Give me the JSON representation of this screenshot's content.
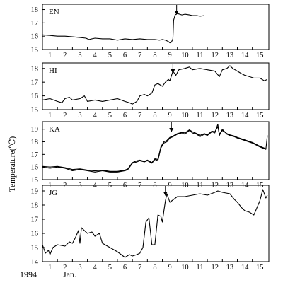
{
  "chart_data": {
    "type": "line",
    "ylabel": "Temperature(℃)",
    "footer": {
      "year": "1994",
      "month": "Jan."
    },
    "x_ticks": [
      1,
      2,
      3,
      4,
      5,
      6,
      7,
      8,
      9,
      10,
      11,
      12,
      13,
      14,
      15
    ],
    "xlim": [
      0.5,
      15.6
    ],
    "panels": [
      {
        "label": "EN",
        "ylim": [
          15,
          18.4
        ],
        "yticks": [
          15,
          16,
          17,
          18
        ],
        "arrow_x": 9.45,
        "series": [
          {
            "x": [
              0.5,
              1.0,
              1.5,
              2.0,
              2.5,
              3.0,
              3.4,
              3.6,
              4.0,
              4.5,
              5.0,
              5.5,
              6.0,
              6.5,
              7.0,
              7.5,
              8.0,
              8.3,
              8.5,
              8.7,
              8.9,
              9.0,
              9.1,
              9.2,
              9.25,
              9.35,
              9.5,
              9.8,
              10.0,
              10.3,
              10.5,
              10.8,
              11.0,
              11.3
            ],
            "values": [
              16.1,
              16.05,
              16.0,
              16.0,
              15.95,
              15.9,
              15.85,
              15.75,
              15.85,
              15.8,
              15.8,
              15.7,
              15.8,
              15.75,
              15.8,
              15.75,
              15.75,
              15.7,
              15.75,
              15.7,
              15.6,
              15.5,
              15.55,
              15.8,
              17.2,
              17.6,
              17.7,
              17.6,
              17.65,
              17.6,
              17.55,
              17.55,
              17.5,
              17.55
            ]
          }
        ]
      },
      {
        "label": "HI",
        "ylim": [
          15,
          18.4
        ],
        "yticks": [
          15,
          16,
          17,
          18
        ],
        "arrow_x": 9.2,
        "series": [
          {
            "x": [
              0.5,
              1.0,
              1.5,
              1.8,
              2.0,
              2.3,
              2.5,
              3.0,
              3.3,
              3.5,
              4.0,
              4.5,
              5.0,
              5.5,
              6.0,
              6.3,
              6.5,
              6.8,
              7.0,
              7.3,
              7.5,
              7.8,
              8.0,
              8.2,
              8.5,
              8.7,
              8.9,
              9.0,
              9.2,
              9.4,
              9.6,
              10.0,
              10.3,
              10.5,
              11.0,
              11.5,
              12.0,
              12.3,
              12.5,
              12.8,
              13.0,
              13.2,
              13.5,
              13.8,
              14.0,
              14.3,
              14.6,
              15.0,
              15.3,
              15.5
            ],
            "values": [
              15.7,
              15.8,
              15.6,
              15.5,
              15.8,
              15.9,
              15.7,
              15.8,
              16.0,
              15.6,
              15.7,
              15.6,
              15.7,
              15.8,
              15.6,
              15.5,
              15.4,
              15.6,
              16.0,
              16.1,
              16.0,
              16.2,
              16.8,
              16.9,
              16.7,
              17.0,
              17.2,
              17.1,
              17.8,
              17.5,
              17.9,
              18.0,
              18.1,
              17.9,
              18.0,
              17.9,
              17.8,
              17.4,
              17.9,
              18.0,
              18.2,
              18.0,
              17.8,
              17.6,
              17.5,
              17.4,
              17.3,
              17.3,
              17.1,
              17.2
            ]
          }
        ]
      },
      {
        "label": "KA",
        "ylim": [
          15,
          19.6
        ],
        "yticks": [
          15,
          16,
          17,
          18,
          19
        ],
        "arrow_x": 9.1,
        "series": [
          {
            "x": [
              0.5,
              1.0,
              1.5,
              2.0,
              2.5,
              3.0,
              3.5,
              4.0,
              4.5,
              5.0,
              5.5,
              6.0,
              6.2,
              6.5,
              6.8,
              7.0,
              7.3,
              7.5,
              7.8,
              8.0,
              8.2,
              8.4,
              8.6,
              8.8,
              9.0,
              9.2,
              9.5,
              9.8,
              10.0,
              10.3,
              10.5,
              10.8,
              11.0,
              11.3,
              11.5,
              11.8,
              12.0,
              12.2,
              12.3,
              12.5,
              12.8,
              13.0,
              13.3,
              13.5,
              14.0,
              14.5,
              15.0,
              15.4,
              15.5
            ],
            "values": [
              16.0,
              15.9,
              16.0,
              15.9,
              15.7,
              15.8,
              15.7,
              15.6,
              15.7,
              15.6,
              15.6,
              15.7,
              15.8,
              16.3,
              16.4,
              16.5,
              16.4,
              16.5,
              16.3,
              16.6,
              16.5,
              17.5,
              17.9,
              18.0,
              18.3,
              18.4,
              18.6,
              18.7,
              18.6,
              18.9,
              18.7,
              18.6,
              18.4,
              18.6,
              18.5,
              18.8,
              18.7,
              19.4,
              18.5,
              19.0,
              18.6,
              18.5,
              18.4,
              18.3,
              18.1,
              17.9,
              17.6,
              17.4,
              18.5
            ]
          },
          {
            "x": [
              0.5,
              1.0,
              1.5,
              2.0,
              2.5,
              3.0,
              3.5,
              4.0,
              4.5,
              5.0,
              5.5,
              6.0,
              6.2,
              6.5,
              6.8,
              7.0,
              7.3,
              7.5,
              7.8,
              8.0,
              8.2,
              8.4,
              8.6,
              8.8,
              9.0,
              9.2,
              9.5,
              9.8,
              10.0,
              10.3,
              10.5,
              10.8,
              11.0,
              11.3,
              11.5,
              11.8,
              12.0,
              12.2,
              12.3,
              12.5,
              12.8,
              13.0,
              13.3,
              13.5,
              14.0,
              14.5,
              15.0,
              15.4
            ],
            "values": [
              16.05,
              16.0,
              16.05,
              15.95,
              15.8,
              15.85,
              15.75,
              15.7,
              15.75,
              15.65,
              15.65,
              15.75,
              15.85,
              16.35,
              16.5,
              16.55,
              16.45,
              16.55,
              16.35,
              16.65,
              16.6,
              17.6,
              18.0,
              18.1,
              18.35,
              18.45,
              18.65,
              18.75,
              18.7,
              18.95,
              18.8,
              18.65,
              18.5,
              18.65,
              18.55,
              18.85,
              18.8,
              19.2,
              18.6,
              18.9,
              18.65,
              18.55,
              18.45,
              18.35,
              18.15,
              17.95,
              17.65,
              17.45
            ]
          }
        ]
      },
      {
        "label": "JG",
        "ylim": [
          14,
          19.4
        ],
        "yticks": [
          14,
          15,
          16,
          17,
          18,
          19
        ],
        "arrow_x": 8.7,
        "series": [
          {
            "x": [
              0.5,
              0.7,
              0.9,
              1.0,
              1.2,
              1.5,
              2.0,
              2.3,
              2.5,
              2.7,
              2.9,
              3.0,
              3.1,
              3.3,
              3.5,
              3.8,
              4.0,
              4.3,
              4.5,
              5.0,
              5.5,
              6.0,
              6.3,
              6.5,
              6.8,
              7.0,
              7.2,
              7.4,
              7.6,
              7.8,
              8.0,
              8.2,
              8.4,
              8.5,
              8.6,
              8.7,
              8.8,
              9.0,
              9.5,
              10.0,
              10.5,
              11.0,
              11.5,
              12.0,
              12.2,
              12.5,
              13.0,
              13.3,
              13.5,
              13.8,
              14.0,
              14.3,
              14.6,
              15.0,
              15.2,
              15.4,
              15.5
            ],
            "values": [
              15.2,
              14.6,
              14.8,
              14.5,
              15.0,
              15.2,
              15.1,
              15.4,
              15.3,
              15.7,
              16.2,
              15.3,
              16.4,
              16.2,
              16.0,
              16.1,
              15.8,
              16.0,
              15.3,
              15.0,
              14.7,
              14.3,
              14.5,
              14.4,
              14.5,
              14.6,
              15.0,
              16.8,
              17.1,
              15.2,
              15.2,
              17.3,
              17.2,
              16.8,
              17.6,
              18.3,
              18.8,
              18.2,
              18.6,
              18.6,
              18.7,
              18.8,
              18.7,
              18.9,
              19.0,
              18.9,
              18.8,
              18.4,
              18.2,
              17.8,
              17.6,
              17.5,
              17.3,
              18.3,
              19.1,
              18.5,
              18.7
            ]
          }
        ]
      }
    ]
  }
}
